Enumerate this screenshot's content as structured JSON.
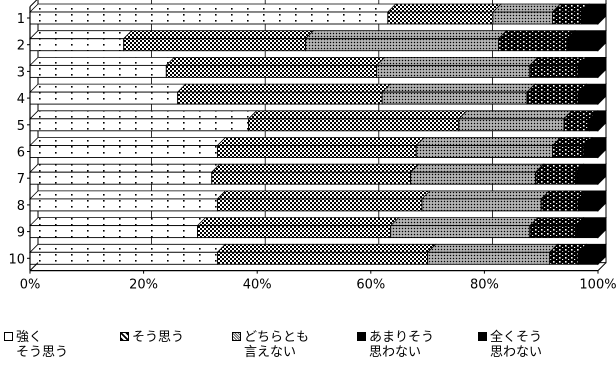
{
  "chart_data": {
    "type": "bar",
    "orientation": "horizontal",
    "stacked": true,
    "percent": true,
    "categories": [
      "1",
      "2",
      "3",
      "4",
      "5",
      "6",
      "7",
      "8",
      "9",
      "10"
    ],
    "series": [
      {
        "name": "強く\nそう思う",
        "values": [
          63,
          16.5,
          24,
          26,
          38.5,
          33,
          32,
          33,
          29.5,
          33
        ],
        "color": "#ffffff",
        "pattern": "dots"
      },
      {
        "name": "そう思う",
        "values": [
          18.5,
          32,
          37,
          36,
          37,
          35,
          35,
          36,
          34,
          37
        ],
        "color": "#bdbdbd",
        "pattern": "checker"
      },
      {
        "name": "どちらとも\n言えない",
        "values": [
          10.5,
          34,
          27,
          25.5,
          18.5,
          24,
          22,
          21,
          24.5,
          21.5
        ],
        "color": "#8c8c8c",
        "pattern": "dense-hatch"
      },
      {
        "name": "あまりそう\n思わない",
        "values": [
          5,
          12,
          8.5,
          9,
          4.5,
          5.5,
          7,
          6.5,
          8,
          5
        ],
        "color": "#4a4a4a",
        "pattern": "dark-dots"
      },
      {
        "name": "全くそう\n思わない",
        "values": [
          3,
          5.5,
          3.5,
          3.5,
          1.5,
          2.5,
          4,
          3.5,
          4,
          3.5
        ],
        "color": "#000000",
        "pattern": "solid"
      }
    ],
    "xlim": [
      0,
      100
    ],
    "x_ticks": [
      "0%",
      "20%",
      "40%",
      "60%",
      "80%",
      "100%"
    ],
    "grid": true,
    "legend_position": "bottom"
  }
}
